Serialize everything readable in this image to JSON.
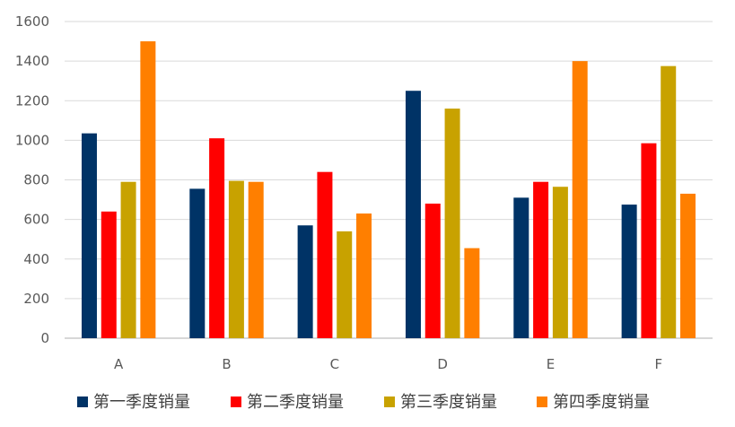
{
  "chart_data": {
    "type": "bar",
    "categories": [
      "A",
      "B",
      "C",
      "D",
      "E",
      "F"
    ],
    "series": [
      {
        "name": "第一季度销量",
        "color": "#003366",
        "values": [
          1035,
          755,
          570,
          1250,
          710,
          675
        ]
      },
      {
        "name": "第二季度销量",
        "color": "#ff0000",
        "values": [
          640,
          1010,
          840,
          680,
          790,
          985
        ]
      },
      {
        "name": "第三季度销量",
        "color": "#c8a200",
        "values": [
          790,
          795,
          540,
          1160,
          765,
          1375
        ]
      },
      {
        "name": "第四季度销量",
        "color": "#ff7f00",
        "values": [
          1500,
          790,
          630,
          455,
          1400,
          730
        ]
      }
    ],
    "y_ticks": [
      "0",
      "200",
      "400",
      "600",
      "800",
      "1000",
      "1200",
      "1400",
      "1600"
    ],
    "ylim": [
      0,
      1600
    ],
    "grid": true,
    "legend_position": "bottom"
  }
}
